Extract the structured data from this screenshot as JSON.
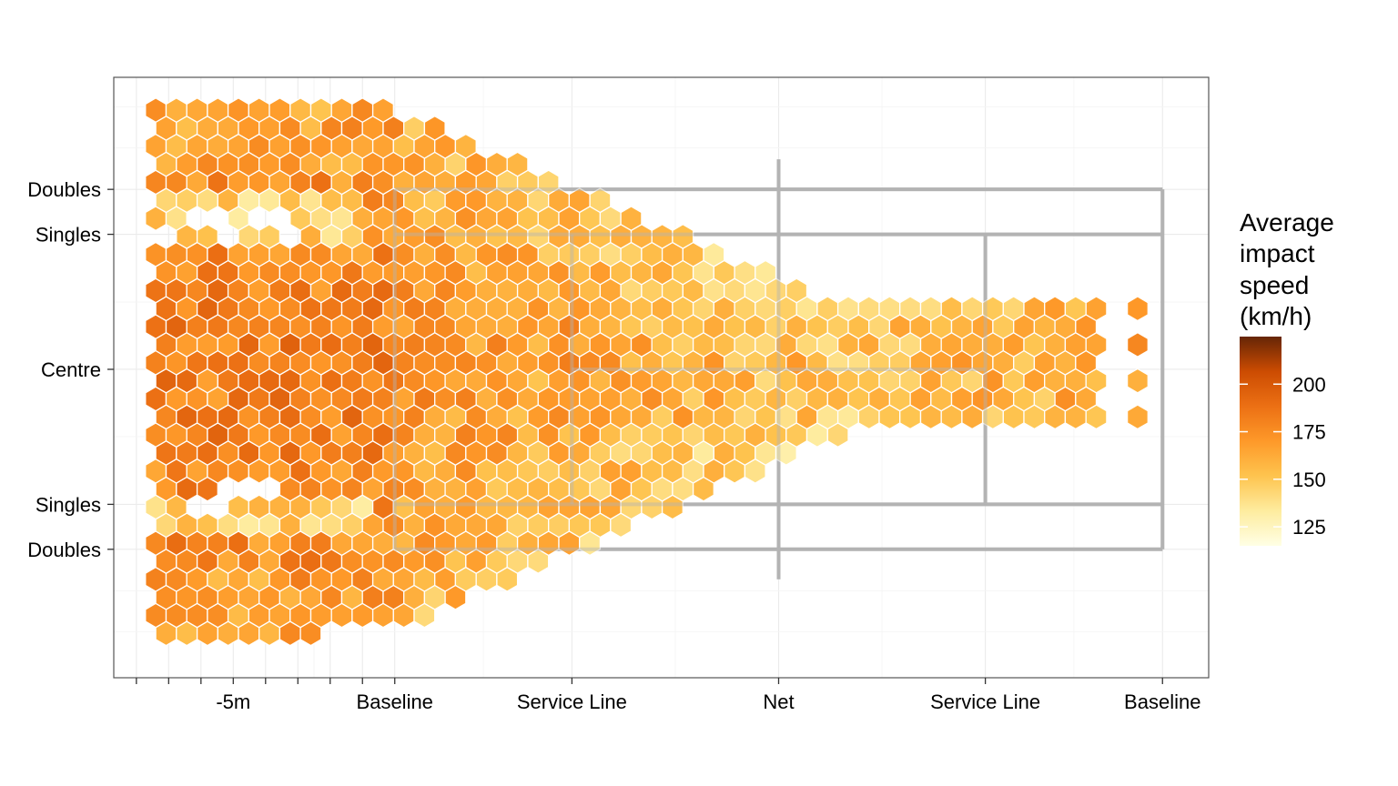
{
  "chart_data": {
    "type": "heatmap",
    "geometry": "hexbin",
    "title": "",
    "xlabel": "",
    "ylabel": "",
    "x_ticks": [
      {
        "value": -5,
        "label": "-5m"
      },
      {
        "value": 0,
        "label": "Baseline"
      },
      {
        "value": 5.485,
        "label": "Service Line"
      },
      {
        "value": 11.885,
        "label": "Net"
      },
      {
        "value": 18.285,
        "label": "Service Line"
      },
      {
        "value": 23.77,
        "label": "Baseline"
      }
    ],
    "x_minor_ticks": [
      -8,
      -7,
      -6,
      -4,
      -3,
      -2,
      -1
    ],
    "y_ticks": [
      {
        "value": 5.485,
        "label": "Doubles"
      },
      {
        "value": 4.115,
        "label": "Singles"
      },
      {
        "value": 0,
        "label": "Centre"
      },
      {
        "value": -4.115,
        "label": "Singles"
      },
      {
        "value": -5.485,
        "label": "Doubles"
      }
    ],
    "xlim": [
      -8.7,
      25.2
    ],
    "ylim": [
      -9.4,
      8.9
    ],
    "court_color": "#b3b3b3",
    "grid": true,
    "legend": {
      "title_lines": [
        "Average",
        "impact",
        "speed",
        "(km/h)"
      ],
      "position": "right",
      "min": 115,
      "max": 225,
      "breaks": [
        125,
        150,
        175,
        200
      ],
      "colors": [
        "#ffffe5",
        "#feec9f",
        "#fec44f",
        "#fe9929",
        "#ec7014",
        "#cc4c02",
        "#662506"
      ]
    },
    "bins": {
      "hex_width_m": 0.64,
      "hex_row_spacing_m": 0.55,
      "speed_min": 120,
      "speed_max": 215
    }
  }
}
